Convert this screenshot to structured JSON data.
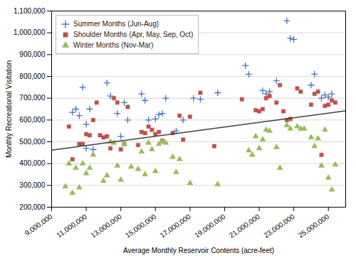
{
  "chart_data": {
    "type": "scatter",
    "xlabel": "Average Monthly Reservoir Contents (acre-feet)",
    "ylabel": "Monthly Recreational Visitation",
    "xlim": [
      9000000,
      26000000
    ],
    "ylim": [
      200000,
      1100000
    ],
    "xticks": [
      {
        "value": 9000000,
        "label": "9,000,000"
      },
      {
        "value": 11000000,
        "label": "11,000,000"
      },
      {
        "value": 13000000,
        "label": "13,000,000"
      },
      {
        "value": 15000000,
        "label": "15,000,000"
      },
      {
        "value": 17000000,
        "label": "17,000,000"
      },
      {
        "value": 19000000,
        "label": "19,000,000"
      },
      {
        "value": 21000000,
        "label": "21,000,000"
      },
      {
        "value": 23000000,
        "label": "23,000,000"
      },
      {
        "value": 25000000,
        "label": "25,000,000"
      }
    ],
    "yticks": [
      {
        "value": 200000,
        "label": "200,000"
      },
      {
        "value": 300000,
        "label": "300,000"
      },
      {
        "value": 400000,
        "label": "400,000"
      },
      {
        "value": 500000,
        "label": "500,000"
      },
      {
        "value": 600000,
        "label": "600,000"
      },
      {
        "value": 700000,
        "label": "700,000"
      },
      {
        "value": 800000,
        "label": "800,000"
      },
      {
        "value": 900000,
        "label": "900,000"
      },
      {
        "value": 1000000,
        "label": "1,000,000"
      },
      {
        "value": 1100000,
        "label": "1,100,000"
      }
    ],
    "grid": "y",
    "legend": "upper left",
    "series": [
      {
        "name": "Summer Months (Jun-Aug)",
        "color": "#4472C4",
        "marker": "plus",
        "values": [
          [
            10200000,
            635000
          ],
          [
            10400000,
            650000
          ],
          [
            10600000,
            620000
          ],
          [
            10800000,
            750000
          ],
          [
            11000000,
            470000
          ],
          [
            11000000,
            580000
          ],
          [
            11200000,
            650000
          ],
          [
            11400000,
            465000
          ],
          [
            12200000,
            770000
          ],
          [
            12400000,
            710000
          ],
          [
            12800000,
            630000
          ],
          [
            13000000,
            525000
          ],
          [
            13200000,
            680000
          ],
          [
            13400000,
            600000
          ],
          [
            14200000,
            720000
          ],
          [
            14400000,
            690000
          ],
          [
            14600000,
            600000
          ],
          [
            15000000,
            605000
          ],
          [
            15200000,
            625000
          ],
          [
            15400000,
            630000
          ],
          [
            15600000,
            700000
          ],
          [
            16200000,
            550000
          ],
          [
            16600000,
            600000
          ],
          [
            17200000,
            700000
          ],
          [
            17600000,
            695000
          ],
          [
            18600000,
            725000
          ],
          [
            20200000,
            850000
          ],
          [
            20400000,
            810000
          ],
          [
            21200000,
            735000
          ],
          [
            21400000,
            720000
          ],
          [
            21600000,
            730000
          ],
          [
            22000000,
            780000
          ],
          [
            22600000,
            1055000
          ],
          [
            22800000,
            975000
          ],
          [
            23000000,
            970000
          ],
          [
            24000000,
            760000
          ],
          [
            24200000,
            810000
          ],
          [
            24600000,
            700000
          ],
          [
            24800000,
            715000
          ],
          [
            25000000,
            705000
          ],
          [
            25200000,
            720000
          ]
        ]
      },
      {
        "name": "Shoulder Months (Apr, May, Sep, Oct)",
        "color": "#C0504D",
        "marker": "square",
        "values": [
          [
            10000000,
            570000
          ],
          [
            10200000,
            420000
          ],
          [
            10600000,
            490000
          ],
          [
            10800000,
            490000
          ],
          [
            11000000,
            535000
          ],
          [
            11200000,
            530000
          ],
          [
            11400000,
            600000
          ],
          [
            11600000,
            680000
          ],
          [
            11800000,
            530000
          ],
          [
            12000000,
            520000
          ],
          [
            12200000,
            525000
          ],
          [
            12400000,
            470000
          ],
          [
            12600000,
            700000
          ],
          [
            12800000,
            680000
          ],
          [
            13000000,
            465000
          ],
          [
            13200000,
            490000
          ],
          [
            13400000,
            660000
          ],
          [
            14000000,
            485000
          ],
          [
            14200000,
            545000
          ],
          [
            14400000,
            540000
          ],
          [
            14600000,
            570000
          ],
          [
            14800000,
            555000
          ],
          [
            15000000,
            535000
          ],
          [
            15200000,
            545000
          ],
          [
            15400000,
            505000
          ],
          [
            16000000,
            540000
          ],
          [
            16400000,
            620000
          ],
          [
            16600000,
            510000
          ],
          [
            17000000,
            615000
          ],
          [
            17600000,
            725000
          ],
          [
            18400000,
            480000
          ],
          [
            20000000,
            695000
          ],
          [
            20800000,
            645000
          ],
          [
            21000000,
            640000
          ],
          [
            21200000,
            650000
          ],
          [
            21400000,
            700000
          ],
          [
            21600000,
            710000
          ],
          [
            22000000,
            680000
          ],
          [
            22200000,
            760000
          ],
          [
            22400000,
            640000
          ],
          [
            22600000,
            600000
          ],
          [
            22800000,
            605000
          ],
          [
            23200000,
            745000
          ],
          [
            23400000,
            730000
          ],
          [
            24000000,
            670000
          ],
          [
            24200000,
            720000
          ],
          [
            24400000,
            730000
          ],
          [
            24600000,
            440000
          ],
          [
            24800000,
            665000
          ],
          [
            25000000,
            670000
          ],
          [
            25200000,
            690000
          ],
          [
            25400000,
            680000
          ]
        ]
      },
      {
        "name": "Winter Months (Nov-Mar)",
        "color": "#9BBB59",
        "marker": "triangle",
        "values": [
          [
            9800000,
            295000
          ],
          [
            10000000,
            400000
          ],
          [
            10200000,
            265000
          ],
          [
            10400000,
            380000
          ],
          [
            10600000,
            290000
          ],
          [
            10800000,
            400000
          ],
          [
            11000000,
            355000
          ],
          [
            11200000,
            380000
          ],
          [
            11400000,
            440000
          ],
          [
            12000000,
            320000
          ],
          [
            12200000,
            345000
          ],
          [
            12400000,
            500000
          ],
          [
            12600000,
            495000
          ],
          [
            12800000,
            390000
          ],
          [
            13000000,
            325000
          ],
          [
            13200000,
            490000
          ],
          [
            13600000,
            385000
          ],
          [
            14000000,
            375000
          ],
          [
            14200000,
            455000
          ],
          [
            14400000,
            350000
          ],
          [
            14600000,
            495000
          ],
          [
            14800000,
            465000
          ],
          [
            15000000,
            365000
          ],
          [
            15200000,
            490000
          ],
          [
            15400000,
            500000
          ],
          [
            15600000,
            495000
          ],
          [
            16000000,
            430000
          ],
          [
            16200000,
            360000
          ],
          [
            16400000,
            420000
          ],
          [
            17000000,
            310000
          ],
          [
            18600000,
            305000
          ],
          [
            20400000,
            460000
          ],
          [
            20600000,
            440000
          ],
          [
            20800000,
            525000
          ],
          [
            21000000,
            470000
          ],
          [
            21200000,
            510000
          ],
          [
            21400000,
            555000
          ],
          [
            21600000,
            550000
          ],
          [
            22000000,
            475000
          ],
          [
            22200000,
            380000
          ],
          [
            22600000,
            575000
          ],
          [
            22800000,
            560000
          ],
          [
            23200000,
            570000
          ],
          [
            23400000,
            560000
          ],
          [
            23600000,
            560000
          ],
          [
            24000000,
            520000
          ],
          [
            24200000,
            480000
          ],
          [
            24400000,
            515000
          ],
          [
            24600000,
            390000
          ],
          [
            24800000,
            555000
          ],
          [
            25000000,
            335000
          ],
          [
            25200000,
            280000
          ],
          [
            25400000,
            395000
          ]
        ]
      },
      {
        "type": "line",
        "color": "#404040",
        "values": [
          [
            9000000,
            462000
          ],
          [
            26000000,
            642000
          ]
        ]
      }
    ]
  }
}
